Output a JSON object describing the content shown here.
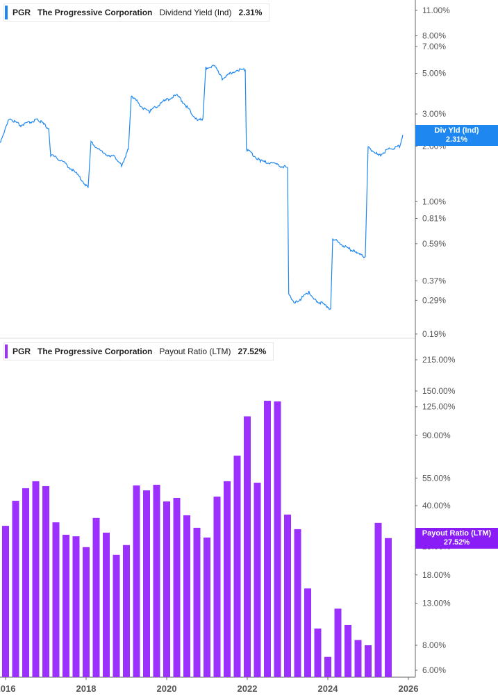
{
  "colors": {
    "yield": "#1e88f0",
    "payout": "#9b30ff",
    "payout_tag": "#8a1cf5",
    "axis": "#999999"
  },
  "top_legend": {
    "ticker": "PGR",
    "company": "The Progressive Corporation",
    "metric": "Dividend Yield (Ind)",
    "value": "2.31%"
  },
  "bottom_legend": {
    "ticker": "PGR",
    "company": "The Progressive Corporation",
    "metric": "Payout Ratio (LTM)",
    "value": "27.52%"
  },
  "top_tag": {
    "label": "Div Yld (Ind)",
    "value": "2.31%"
  },
  "bottom_tag": {
    "label": "Payout Ratio (LTM)",
    "value": "27.52%"
  },
  "chart_data": [
    {
      "type": "line",
      "title": "PGR Dividend Yield (Ind)",
      "yscale": "log",
      "ylim": [
        0.19,
        11
      ],
      "yticks": [
        "11.00%",
        "8.00%",
        "7.00%",
        "5.00%",
        "3.00%",
        "2.00%",
        "1.00%",
        "0.81%",
        "0.59%",
        "0.37%",
        "0.29%",
        "0.19%"
      ],
      "ytick_values": [
        11,
        8,
        7,
        5,
        3,
        2,
        1,
        0.81,
        0.59,
        0.37,
        0.29,
        0.19
      ],
      "x": [
        2015.86,
        2016.1,
        2016.38,
        2016.81,
        2017.07,
        2017.12,
        2017.41,
        2017.76,
        2018.05,
        2018.12,
        2018.45,
        2018.71,
        2018.88,
        2019.05,
        2019.12,
        2019.4,
        2019.57,
        2019.91,
        2020.26,
        2020.52,
        2020.78,
        2020.9,
        2020.97,
        2021.21,
        2021.38,
        2021.72,
        2021.95,
        2021.98,
        2022.33,
        2022.67,
        2023.0,
        2023.03,
        2023.19,
        2023.53,
        2023.71,
        2023.97,
        2024.07,
        2024.12,
        2024.4,
        2024.62,
        2024.74,
        2024.93,
        2025.0,
        2025.26,
        2025.52,
        2025.78,
        2025.86
      ],
      "y": [
        2.1,
        2.85,
        2.6,
        2.8,
        2.5,
        1.8,
        1.66,
        1.42,
        1.19,
        2.1,
        1.82,
        1.76,
        1.58,
        1.93,
        3.8,
        3.25,
        3.1,
        3.5,
        3.8,
        3.25,
        2.73,
        2.85,
        5.34,
        5.5,
        4.68,
        5.2,
        5.2,
        1.93,
        1.66,
        1.6,
        1.53,
        0.31,
        0.28,
        0.32,
        0.29,
        0.27,
        0.26,
        0.63,
        0.57,
        0.54,
        0.52,
        0.5,
        1.98,
        1.78,
        1.93,
        2.0,
        2.31
      ],
      "last_value": 2.31
    },
    {
      "type": "bar",
      "title": "PGR Payout Ratio (LTM)",
      "yscale": "log",
      "ylim": [
        5.5,
        230
      ],
      "yticks": [
        "215.00%",
        "150.00%",
        "125.00%",
        "90.00%",
        "55.00%",
        "40.00%",
        "25.00%",
        "18.00%",
        "13.00%",
        "8.00%",
        "6.00%"
      ],
      "ytick_values": [
        215,
        150,
        125,
        90,
        55,
        40,
        25,
        18,
        13,
        8,
        6
      ],
      "x": [
        2016.0,
        2016.25,
        2016.5,
        2016.75,
        2017.0,
        2017.25,
        2017.5,
        2017.75,
        2018.0,
        2018.25,
        2018.5,
        2018.75,
        2019.0,
        2019.25,
        2019.5,
        2019.75,
        2020.0,
        2020.25,
        2020.5,
        2020.75,
        2021.0,
        2021.25,
        2021.5,
        2021.75,
        2022.0,
        2022.25,
        2022.5,
        2022.75,
        2023.0,
        2023.25,
        2023.5,
        2023.75,
        2024.0,
        2024.25,
        2024.5,
        2024.75,
        2025.0,
        2025.25,
        2025.5
      ],
      "values": [
        31.7,
        42.3,
        48.9,
        53.0,
        50.1,
        33.0,
        28.6,
        28.1,
        24.8,
        34.7,
        29.3,
        22.7,
        25.4,
        50.5,
        47.7,
        50.9,
        42.0,
        43.7,
        35.8,
        31.0,
        27.7,
        44.4,
        53.0,
        71.2,
        112,
        52.1,
        134,
        133,
        36.1,
        30.5,
        15.4,
        9.7,
        7.0,
        12.2,
        10.1,
        8.5,
        8.0,
        32.8,
        27.52
      ]
    }
  ],
  "x_axis": {
    "ticks": [
      "2016",
      "2018",
      "2020",
      "2022",
      "2024",
      "2026"
    ],
    "tick_values": [
      2016,
      2018,
      2020,
      2022,
      2024,
      2026
    ]
  }
}
